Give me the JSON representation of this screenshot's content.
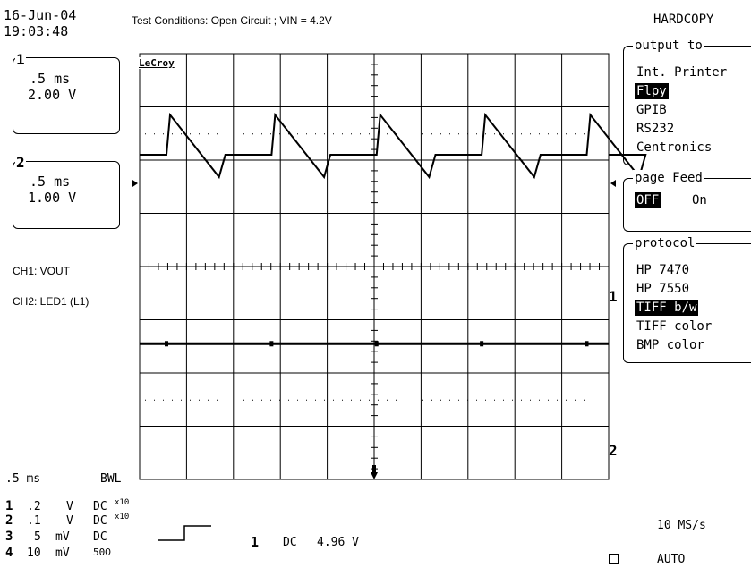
{
  "header": {
    "date": "16-Jun-04",
    "time": "19:03:48",
    "test_conditions": "Test Conditions: Open Circuit ; VIN = 4.2V",
    "brand": "LeCroy"
  },
  "channel_boxes": [
    {
      "id": "1",
      "timebase": ".5 ms",
      "volts": "2.00 V"
    },
    {
      "id": "2",
      "timebase": ".5 ms",
      "volts": "1.00 V"
    }
  ],
  "channel_labels": {
    "ch1": "CH1: VOUT",
    "ch2": "CH2: LED1 (L1)"
  },
  "trace_markers": {
    "ch1": "1",
    "ch2": "2"
  },
  "hardcopy_menu": {
    "title": "HARDCOPY",
    "output_to": {
      "label": "output to",
      "options": [
        "Int. Printer",
        "Flpy",
        "GPIB",
        "RS232",
        "Centronics"
      ],
      "selected": "Flpy"
    },
    "page_feed": {
      "label": "page Feed",
      "options": [
        "OFF",
        "On"
      ],
      "selected": "OFF"
    },
    "protocol": {
      "label": "protocol",
      "options": [
        "HP 7470",
        "HP 7550",
        "TIFF b/w",
        "TIFF color",
        "BMP color"
      ],
      "selected": "TIFF b/w"
    }
  },
  "bottom_status": {
    "timebase": ".5 ms",
    "bwl": "BWL",
    "channels": [
      {
        "num": "1",
        "scale": ".2",
        "unit": "V",
        "coupling": "DC",
        "probe": "x10"
      },
      {
        "num": "2",
        "scale": ".1",
        "unit": "V",
        "coupling": "DC",
        "probe": "x10"
      },
      {
        "num": "3",
        "scale": "5",
        "unit": "mV",
        "coupling": "DC",
        "probe": ""
      },
      {
        "num": "4",
        "scale": "10",
        "unit": "mV",
        "coupling": "50Ω",
        "probe": ""
      }
    ],
    "trigger_channel": "1",
    "trigger_coupling": "DC",
    "trigger_level": "4.96 V",
    "sample_rate": "10 MS/s",
    "trigger_mode": "AUTO"
  },
  "chart_data": {
    "type": "line",
    "title": "",
    "xlabel": "",
    "ylabel": "",
    "grid": true,
    "x_divisions": 10,
    "y_divisions": 8,
    "x_unit_per_div": "0.5 ms",
    "series": [
      {
        "name": "CH1: VOUT",
        "volts_per_div": 0.2,
        "shape": "sawtooth",
        "period_ms": 1.12,
        "low_div": -0.25,
        "high_div": 0.75,
        "offset_div": 2.1
      },
      {
        "name": "CH2: LED1 (L1)",
        "volts_per_div": 0.1,
        "shape": "flat",
        "offset_div": -1.45
      }
    ],
    "colors": {
      "trace": "#000000",
      "grid": "#000000",
      "background": "#ffffff"
    }
  }
}
